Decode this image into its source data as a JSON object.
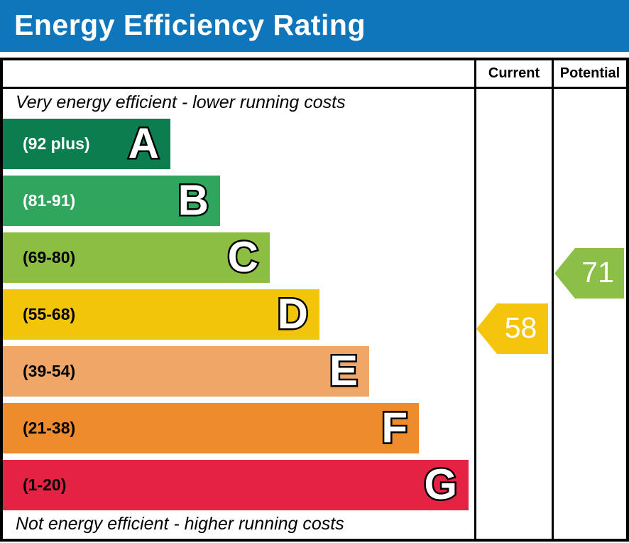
{
  "header": {
    "title": "Energy Efficiency Rating",
    "bg_color": "#0f76bc"
  },
  "table": {
    "columns": {
      "current": "Current",
      "potential": "Potential"
    },
    "top_caption": "Very energy efficient - lower running costs",
    "bottom_caption": "Not energy efficient - higher running costs",
    "bands": [
      {
        "grade": "A",
        "range": "(92 plus)",
        "color": "#0b7d4f",
        "label_color": "#ffffff"
      },
      {
        "grade": "B",
        "range": "(81-91)",
        "color": "#2fa55e",
        "label_color": "#ffffff"
      },
      {
        "grade": "C",
        "range": "(69-80)",
        "color": "#8bbe43",
        "label_color": "#000000"
      },
      {
        "grade": "D",
        "range": "(55-68)",
        "color": "#f3c50a",
        "label_color": "#000000"
      },
      {
        "grade": "E",
        "range": "(39-54)",
        "color": "#f0a666",
        "label_color": "#000000"
      },
      {
        "grade": "F",
        "range": "(21-38)",
        "color": "#ee8b2d",
        "label_color": "#000000"
      },
      {
        "grade": "G",
        "range": "(1-20)",
        "color": "#e42243",
        "label_color": "#000000"
      }
    ],
    "current": {
      "label": "Current",
      "value": "58",
      "color": "#f5c50d",
      "band": "D"
    },
    "potential": {
      "label": "Potential",
      "value": "71",
      "color": "#8cbf47",
      "band": "C"
    }
  },
  "chart_data": {
    "type": "bar",
    "title": "Energy Efficiency Rating",
    "categories": [
      "A",
      "B",
      "C",
      "D",
      "E",
      "F",
      "G"
    ],
    "band_ranges": [
      "92 plus",
      "81-91",
      "69-80",
      "55-68",
      "39-54",
      "21-38",
      "1-20"
    ],
    "band_colors": [
      "#0b7d4f",
      "#2fa55e",
      "#8bbe43",
      "#f3c50a",
      "#f0a666",
      "#ee8b2d",
      "#e42243"
    ],
    "bar_relative_lengths": [
      236,
      306,
      376,
      446,
      516,
      586,
      656
    ],
    "annotations": [
      "Very energy efficient - lower running costs",
      "Not energy efficient - higher running costs"
    ],
    "markers": [
      {
        "name": "Current",
        "value": 58,
        "band": "D",
        "color": "#f5c50d"
      },
      {
        "name": "Potential",
        "value": 71,
        "band": "C",
        "color": "#8cbf47"
      }
    ],
    "value_range": [
      1,
      100
    ],
    "legend_position": "none",
    "grid": false
  }
}
